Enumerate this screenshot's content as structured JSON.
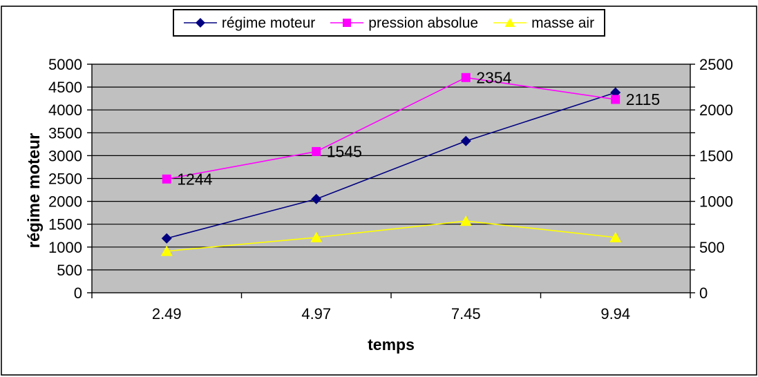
{
  "chart_data": {
    "type": "line",
    "title": "",
    "categories": [
      "2.49",
      "4.97",
      "7.45",
      "9.94"
    ],
    "xlabel": "temps",
    "ylabel_left": "régime moteur",
    "left_axis": {
      "min": 0,
      "max": 5000,
      "step": 500,
      "tick_labels": [
        "0",
        "500",
        "1000",
        "1500",
        "2000",
        "2500",
        "3000",
        "3500",
        "4000",
        "4500",
        "5000"
      ]
    },
    "right_axis": {
      "min": 0,
      "max": 2500,
      "label_step": 500,
      "minor_tick_step": 250,
      "tick_labels": [
        "0",
        "500",
        "1000",
        "1500",
        "2000",
        "2500"
      ]
    },
    "grid": "horizontal-only",
    "legend_position": "top-center",
    "plot_background": "#c0c0c0",
    "axis_color": "#000000",
    "series": [
      {
        "name": "régime moteur",
        "axis": "left",
        "color": "#000080",
        "marker": "diamond",
        "values": [
          1190,
          2050,
          3320,
          4380
        ]
      },
      {
        "name": "pression absolue",
        "axis": "right",
        "color": "#ff00ff",
        "marker": "square",
        "values": [
          1244,
          1545,
          2354,
          2115
        ],
        "data_labels": [
          "1244",
          "1545",
          "2354",
          "2115"
        ]
      },
      {
        "name": "masse air",
        "axis": "left",
        "color": "#ffff00",
        "marker": "triangle",
        "values": [
          910,
          1210,
          1570,
          1210
        ]
      }
    ]
  }
}
